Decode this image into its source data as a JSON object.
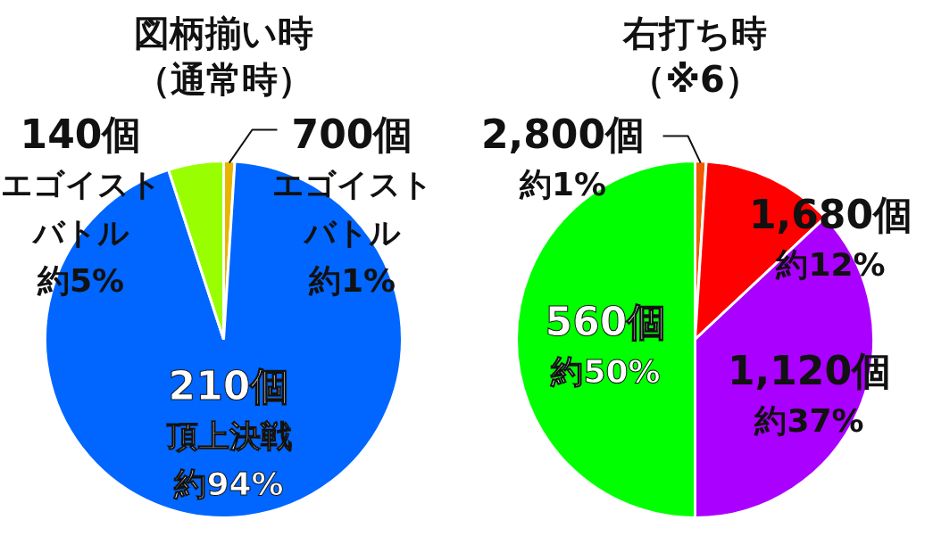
{
  "chart_data": [
    {
      "type": "pie",
      "title": "図柄揃い時",
      "subtitle": "（通常時）",
      "categories": [
        "700個エゴイストバトル",
        "210個頂上決戦",
        "140個エゴイストバトル"
      ],
      "values": [
        1,
        94,
        5
      ],
      "colors": [
        "#e8b400",
        "#0066ff",
        "#99ff00"
      ],
      "value_labels": [
        "約1%",
        "約94%",
        "約5%"
      ]
    },
    {
      "type": "pie",
      "title": "右打ち時",
      "subtitle": "（※6）",
      "categories": [
        "2,800個",
        "1,680個",
        "1,120個",
        "560個"
      ],
      "values": [
        1,
        12,
        37,
        50
      ],
      "colors": [
        "#f05a00",
        "#ff0000",
        "#aa00ff",
        "#00ff00"
      ],
      "value_labels": [
        "約1%",
        "約12%",
        "約37%",
        "約50%"
      ]
    }
  ]
}
